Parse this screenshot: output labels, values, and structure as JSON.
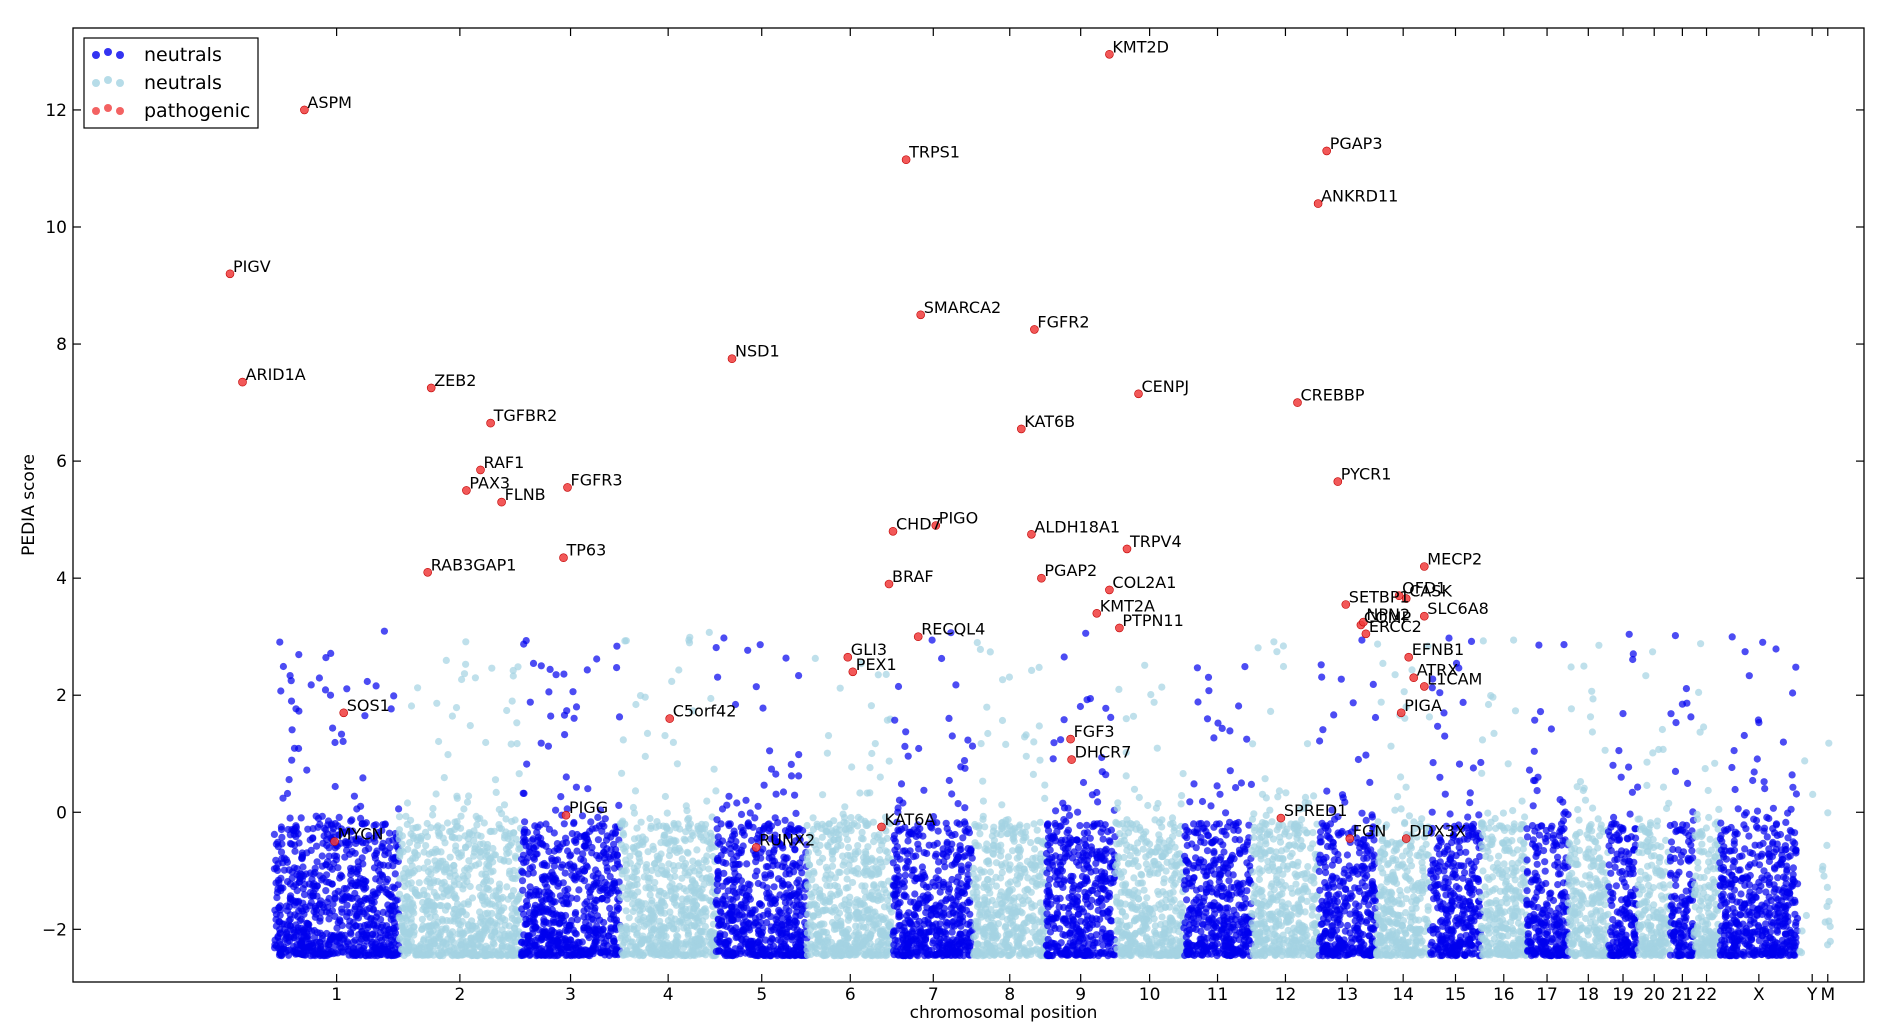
{
  "chart_data": {
    "type": "scatter",
    "title": "",
    "xlabel": "chromosomal position",
    "ylabel": "PEDIA score",
    "ylim": [
      -2.9,
      13.4
    ],
    "yticks": [
      {
        "value": -2,
        "label": "−2"
      },
      {
        "value": 0,
        "label": "0"
      },
      {
        "value": 2,
        "label": "2"
      },
      {
        "value": 4,
        "label": "4"
      },
      {
        "value": 6,
        "label": "6"
      },
      {
        "value": 8,
        "label": "8"
      },
      {
        "value": 10,
        "label": "10"
      },
      {
        "value": 12,
        "label": "12"
      }
    ],
    "grid": false,
    "legend": {
      "position": "top-left",
      "entries": [
        {
          "label": "neutrals",
          "color": "#0000ee"
        },
        {
          "label": "neutrals",
          "color": "#a4d3e2"
        },
        {
          "label": "pathogenic",
          "color": "#f03b3b"
        }
      ]
    },
    "colors": {
      "neutral_dark": "#0000ee",
      "neutral_light": "#a4d3e2",
      "pathogenic": "#f03b3b"
    },
    "chromosomes": [
      {
        "name": "1",
        "center": 124.0,
        "start": 0.0,
        "end": 248.0,
        "band": "dark"
      },
      {
        "name": "2",
        "center": 369.0,
        "start": 248.0,
        "end": 490.0,
        "band": "light"
      },
      {
        "name": "3",
        "center": 589.0,
        "start": 490.0,
        "end": 688.0,
        "band": "dark"
      },
      {
        "name": "4",
        "center": 783.0,
        "start": 688.0,
        "end": 878.0,
        "band": "light"
      },
      {
        "name": "5",
        "center": 969.0,
        "start": 878.0,
        "end": 1059.0,
        "band": "dark"
      },
      {
        "name": "6",
        "center": 1145.0,
        "start": 1059.0,
        "end": 1230.0,
        "band": "light"
      },
      {
        "name": "7",
        "center": 1310.0,
        "start": 1230.0,
        "end": 1389.0,
        "band": "dark"
      },
      {
        "name": "8",
        "center": 1462.0,
        "start": 1389.0,
        "end": 1534.0,
        "band": "light"
      },
      {
        "name": "9",
        "center": 1603.0,
        "start": 1534.0,
        "end": 1672.0,
        "band": "dark"
      },
      {
        "name": "10",
        "center": 1740.0,
        "start": 1672.0,
        "end": 1808.0,
        "band": "light"
      },
      {
        "name": "11",
        "center": 1875.0,
        "start": 1808.0,
        "end": 1943.0,
        "band": "dark"
      },
      {
        "name": "12",
        "center": 2010.0,
        "start": 1943.0,
        "end": 2076.0,
        "band": "light"
      },
      {
        "name": "13",
        "center": 2133.0,
        "start": 2076.0,
        "end": 2190.0,
        "band": "dark"
      },
      {
        "name": "14",
        "center": 2244.0,
        "start": 2190.0,
        "end": 2297.0,
        "band": "light"
      },
      {
        "name": "15",
        "center": 2348.0,
        "start": 2297.0,
        "end": 2399.0,
        "band": "dark"
      },
      {
        "name": "16",
        "center": 2444.0,
        "start": 2399.0,
        "end": 2489.0,
        "band": "light"
      },
      {
        "name": "17",
        "center": 2530.0,
        "start": 2489.0,
        "end": 2572.0,
        "band": "dark"
      },
      {
        "name": "18",
        "center": 2612.0,
        "start": 2572.0,
        "end": 2652.0,
        "band": "light"
      },
      {
        "name": "19",
        "center": 2681.0,
        "start": 2652.0,
        "end": 2711.0,
        "band": "dark"
      },
      {
        "name": "20",
        "center": 2743.0,
        "start": 2711.0,
        "end": 2775.0,
        "band": "light"
      },
      {
        "name": "21",
        "center": 2799.0,
        "start": 2775.0,
        "end": 2822.0,
        "band": "dark"
      },
      {
        "name": "22",
        "center": 2847.0,
        "start": 2822.0,
        "end": 2873.0,
        "band": "light"
      },
      {
        "name": "X",
        "center": 2951.0,
        "start": 2873.0,
        "end": 3029.0,
        "band": "dark"
      },
      {
        "name": "Y",
        "center": 3057.0,
        "start": 3029.0,
        "end": 3086.0,
        "band": "light"
      },
      {
        "name": "M",
        "center": 3088.0,
        "start": 3086.0,
        "end": 3090.0,
        "band": "light"
      }
    ],
    "xlim": [
      -400,
      3160
    ],
    "pathogenic_points": [
      {
        "x": -88,
        "y": 9.2,
        "label": "PIGV"
      },
      {
        "x": -63,
        "y": 7.35,
        "label": "ARID1A"
      },
      {
        "x": 60,
        "y": 12.0,
        "label": "ASPM"
      },
      {
        "x": 138,
        "y": 1.7,
        "label": "SOS1"
      },
      {
        "x": 120,
        "y": -0.5,
        "label": "MYCN"
      },
      {
        "x": 312,
        "y": 7.25,
        "label": "ZEB2"
      },
      {
        "x": 305,
        "y": 4.1,
        "label": "RAB3GAP1"
      },
      {
        "x": 382,
        "y": 5.5,
        "label": "PAX3"
      },
      {
        "x": 410,
        "y": 5.85,
        "label": "RAF1"
      },
      {
        "x": 430,
        "y": 6.65,
        "label": "TGFBR2"
      },
      {
        "x": 452,
        "y": 5.3,
        "label": "FLNB"
      },
      {
        "x": 583,
        "y": 5.55,
        "label": "FGFR3"
      },
      {
        "x": 575,
        "y": 4.35,
        "label": "TP63"
      },
      {
        "x": 580,
        "y": -0.05,
        "label": "PIGG"
      },
      {
        "x": 786,
        "y": 1.6,
        "label": "C5orf42"
      },
      {
        "x": 910,
        "y": 7.75,
        "label": "NSD1"
      },
      {
        "x": 958,
        "y": -0.6,
        "label": "RUNX2"
      },
      {
        "x": 1140,
        "y": 2.65,
        "label": "GLI3"
      },
      {
        "x": 1150,
        "y": 2.4,
        "label": "PEX1"
      },
      {
        "x": 1222,
        "y": 3.9,
        "label": "BRAF"
      },
      {
        "x": 1207,
        "y": -0.25,
        "label": "KAT6A"
      },
      {
        "x": 1256,
        "y": 11.15,
        "label": "TRPS1"
      },
      {
        "x": 1285,
        "y": 8.5,
        "label": "SMARCA2"
      },
      {
        "x": 1230,
        "y": 4.8,
        "label": "CHD7"
      },
      {
        "x": 1280,
        "y": 3.0,
        "label": "RECQL4"
      },
      {
        "x": 1315,
        "y": 4.9,
        "label": "PIGO"
      },
      {
        "x": 1485,
        "y": 6.55,
        "label": "KAT6B"
      },
      {
        "x": 1511,
        "y": 8.25,
        "label": "FGFR2"
      },
      {
        "x": 1505,
        "y": 4.75,
        "label": "ALDH18A1"
      },
      {
        "x": 1525,
        "y": 4.0,
        "label": "PGAP2"
      },
      {
        "x": 1583,
        "y": 1.25,
        "label": "FGF3"
      },
      {
        "x": 1585,
        "y": 0.9,
        "label": "DHCR7"
      },
      {
        "x": 1635,
        "y": 3.4,
        "label": "KMT2A"
      },
      {
        "x": 1660,
        "y": 12.95,
        "label": "KMT2D"
      },
      {
        "x": 1660,
        "y": 3.8,
        "label": "COL2A1"
      },
      {
        "x": 1680,
        "y": 3.15,
        "label": "PTPN11"
      },
      {
        "x": 1695,
        "y": 4.5,
        "label": "TRPV4"
      },
      {
        "x": 1718,
        "y": 7.15,
        "label": "CENPJ"
      },
      {
        "x": 2001,
        "y": -0.1,
        "label": "SPRED1"
      },
      {
        "x": 2034,
        "y": 7.0,
        "label": "CREBBP"
      },
      {
        "x": 2075,
        "y": 10.4,
        "label": "ANKRD11"
      },
      {
        "x": 2092,
        "y": 11.3,
        "label": "PGAP3"
      },
      {
        "x": 2114,
        "y": 5.65,
        "label": "PYCR1"
      },
      {
        "x": 2130,
        "y": 3.55,
        "label": "SETBP1"
      },
      {
        "x": 2138,
        "y": -0.45,
        "label": "FGN"
      },
      {
        "x": 2160,
        "y": 3.2,
        "label": "COMP"
      },
      {
        "x": 2170,
        "y": 3.05,
        "label": "ERCC2"
      },
      {
        "x": 2165,
        "y": 3.25,
        "label": "NPN2"
      },
      {
        "x": 2236,
        "y": 3.7,
        "label": "OFD1"
      },
      {
        "x": 2250,
        "y": 3.65,
        "label": "CASK"
      },
      {
        "x": 2240,
        "y": 1.7,
        "label": "PIGA"
      },
      {
        "x": 2255,
        "y": 2.65,
        "label": "EFNB1"
      },
      {
        "x": 2265,
        "y": 2.3,
        "label": "ATRX"
      },
      {
        "x": 2250,
        "y": -0.45,
        "label": "DDX3X"
      },
      {
        "x": 2286,
        "y": 4.2,
        "label": "MECP2"
      },
      {
        "x": 2286,
        "y": 3.35,
        "label": "SLC6A8"
      },
      {
        "x": 2286,
        "y": 2.15,
        "label": "L1CAM"
      }
    ]
  }
}
